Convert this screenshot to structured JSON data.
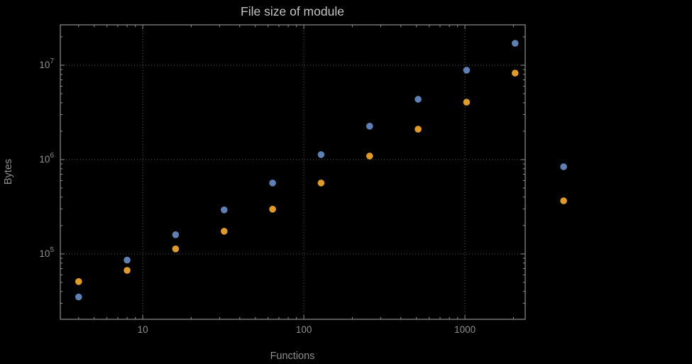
{
  "chart_data": {
    "type": "scatter",
    "title": "File size of module",
    "xlabel": "Functions",
    "ylabel": "Bytes",
    "x_scale": "log",
    "y_scale": "log",
    "xlim": [
      3.08,
      2366
    ],
    "ylim": [
      20300,
      26800000
    ],
    "grid": "dotted-at-major-ticks",
    "legend": "none",
    "x_major_ticks": [
      10,
      100,
      1000
    ],
    "x_tick_labels": [
      "10",
      "100",
      "1000"
    ],
    "y_major_ticks": [
      100000,
      1000000,
      10000000
    ],
    "y_tick_exponents": [
      5,
      6,
      7
    ],
    "series": [
      {
        "name": "series-blue",
        "color": "#5e81b5",
        "points": [
          [
            4,
            35000
          ],
          [
            8,
            86000
          ],
          [
            16,
            160000
          ],
          [
            32,
            293000
          ],
          [
            64,
            565000
          ],
          [
            128,
            1130000
          ],
          [
            256,
            2260000
          ],
          [
            512,
            4360000
          ],
          [
            1024,
            8860000
          ],
          [
            2048,
            17100000
          ],
          [
            4096,
            840000
          ]
        ]
      },
      {
        "name": "series-orange",
        "color": "#e19c24",
        "points": [
          [
            4,
            51000
          ],
          [
            8,
            67000
          ],
          [
            16,
            113000
          ],
          [
            32,
            174000
          ],
          [
            64,
            298000
          ],
          [
            128,
            565000
          ],
          [
            256,
            1090000
          ],
          [
            512,
            2100000
          ],
          [
            1024,
            4060000
          ],
          [
            2048,
            8260000
          ],
          [
            4096,
            366000
          ]
        ]
      }
    ],
    "colors": {
      "background": "#000000",
      "frame": "#8f8f8f",
      "grid": "#5a5a5a",
      "title": "#c4c4c4",
      "labels": "#8f8f8f",
      "tick_labels": "#8f8f8f"
    }
  }
}
